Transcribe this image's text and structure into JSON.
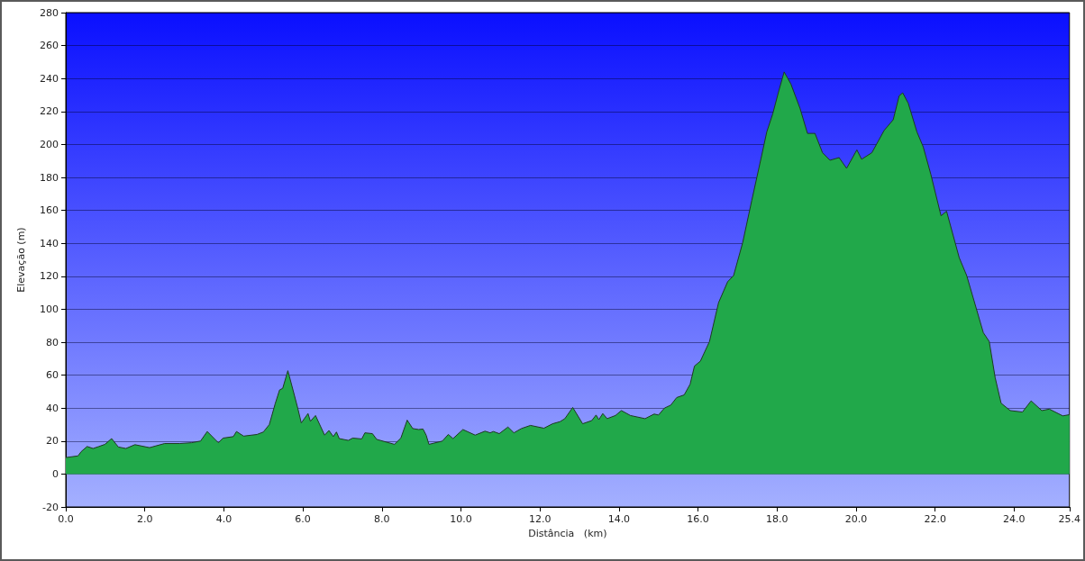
{
  "chart_data": {
    "type": "area",
    "xlabel": "Distância   (km)",
    "ylabel": "Elevação (m)",
    "xlim": [
      0,
      25.4
    ],
    "ylim": [
      -20,
      280
    ],
    "xticks": [
      {
        "value": 0,
        "label": "0.0"
      },
      {
        "value": 2,
        "label": "2.0"
      },
      {
        "value": 4,
        "label": "4.0"
      },
      {
        "value": 6,
        "label": "6.0"
      },
      {
        "value": 8,
        "label": "8.0"
      },
      {
        "value": 10,
        "label": "10.0"
      },
      {
        "value": 12,
        "label": "12.0"
      },
      {
        "value": 14,
        "label": "14.0"
      },
      {
        "value": 16,
        "label": "16.0"
      },
      {
        "value": 18,
        "label": "18.0"
      },
      {
        "value": 20,
        "label": "20.0"
      },
      {
        "value": 22,
        "label": "22.0"
      },
      {
        "value": 24,
        "label": "24.0"
      },
      {
        "value": 25.4,
        "label": "25.4"
      }
    ],
    "yticks": [
      -20,
      0,
      20,
      40,
      60,
      80,
      100,
      120,
      140,
      160,
      180,
      200,
      220,
      240,
      260,
      280
    ],
    "grid": "y",
    "series": [
      {
        "color": "#21a84a",
        "x": [
          0,
          0.31,
          0.39,
          0.54,
          0.69,
          0.84,
          0.99,
          1.16,
          1.33,
          1.52,
          1.75,
          2.12,
          2.5,
          2.88,
          3.18,
          3.41,
          3.58,
          3.86,
          3.98,
          4.24,
          4.32,
          4.5,
          4.84,
          5.0,
          5.15,
          5.3,
          5.41,
          5.49,
          5.62,
          5.75,
          5.87,
          5.96,
          6.13,
          6.19,
          6.32,
          6.55,
          6.66,
          6.77,
          6.85,
          6.92,
          7.15,
          7.26,
          7.49,
          7.57,
          7.76,
          7.87,
          8.32,
          8.48,
          8.64,
          8.78,
          8.93,
          9.04,
          9.12,
          9.19,
          9.53,
          9.68,
          9.8,
          10.05,
          10.36,
          10.61,
          10.74,
          10.82,
          10.97,
          11.19,
          11.34,
          11.53,
          11.76,
          12.1,
          12.32,
          12.51,
          12.63,
          12.83,
          13.08,
          13.31,
          13.42,
          13.49,
          13.59,
          13.7,
          13.91,
          14.06,
          14.29,
          14.66,
          14.89,
          15.0,
          15.15,
          15.31,
          15.46,
          15.65,
          15.8,
          15.91,
          16.06,
          16.29,
          16.52,
          16.75,
          16.9,
          17.13,
          17.36,
          17.59,
          17.74,
          17.89,
          18.05,
          18.18,
          18.35,
          18.58,
          18.77,
          18.96,
          19.15,
          19.34,
          19.57,
          19.76,
          20.02,
          20.14,
          20.4,
          20.71,
          20.94,
          21.09,
          21.18,
          21.32,
          21.54,
          21.7,
          21.89,
          22.15,
          22.29,
          22.61,
          22.8,
          23.22,
          23.37,
          23.52,
          23.67,
          23.9,
          24.21,
          24.43,
          24.7,
          24.89,
          25.23,
          25.4
        ],
        "values": [
          10,
          11,
          13.6,
          16.7,
          15.5,
          16.7,
          18,
          21.5,
          16.4,
          15.5,
          17.8,
          16,
          18.5,
          18.5,
          19,
          20,
          25.8,
          19,
          21.8,
          22.7,
          25.8,
          23,
          24,
          25.5,
          30,
          42.7,
          51,
          52,
          62.7,
          51,
          40,
          31,
          36.7,
          32,
          35.5,
          23.6,
          26.4,
          22.7,
          25.5,
          21.5,
          20.4,
          21.8,
          21.3,
          25,
          24.5,
          21,
          18,
          21.8,
          32.7,
          27.6,
          27,
          27.3,
          23.6,
          18,
          20,
          24,
          21.5,
          27,
          23.6,
          26,
          25,
          25.8,
          24.5,
          28.5,
          25,
          27.6,
          29.5,
          27.8,
          30.5,
          31.8,
          33.6,
          40.4,
          30.5,
          32.4,
          35.8,
          33,
          36.7,
          33.6,
          35.5,
          38.5,
          35.5,
          33.6,
          36.4,
          35.8,
          40,
          41.8,
          46.4,
          48,
          54.5,
          65.5,
          68.5,
          80.4,
          104,
          116.7,
          120.4,
          140.4,
          166,
          191,
          207.6,
          218.5,
          233,
          244,
          236.7,
          222,
          206.7,
          206.7,
          195,
          190.4,
          192,
          185.5,
          196.7,
          191,
          195,
          208.5,
          215,
          229.5,
          231.3,
          225,
          207.6,
          198.5,
          182,
          156.7,
          159.5,
          131.3,
          120.4,
          85.8,
          80.4,
          58.5,
          43,
          38.5,
          37.6,
          44.4,
          38.5,
          39.4,
          35.3,
          36
        ]
      }
    ]
  }
}
